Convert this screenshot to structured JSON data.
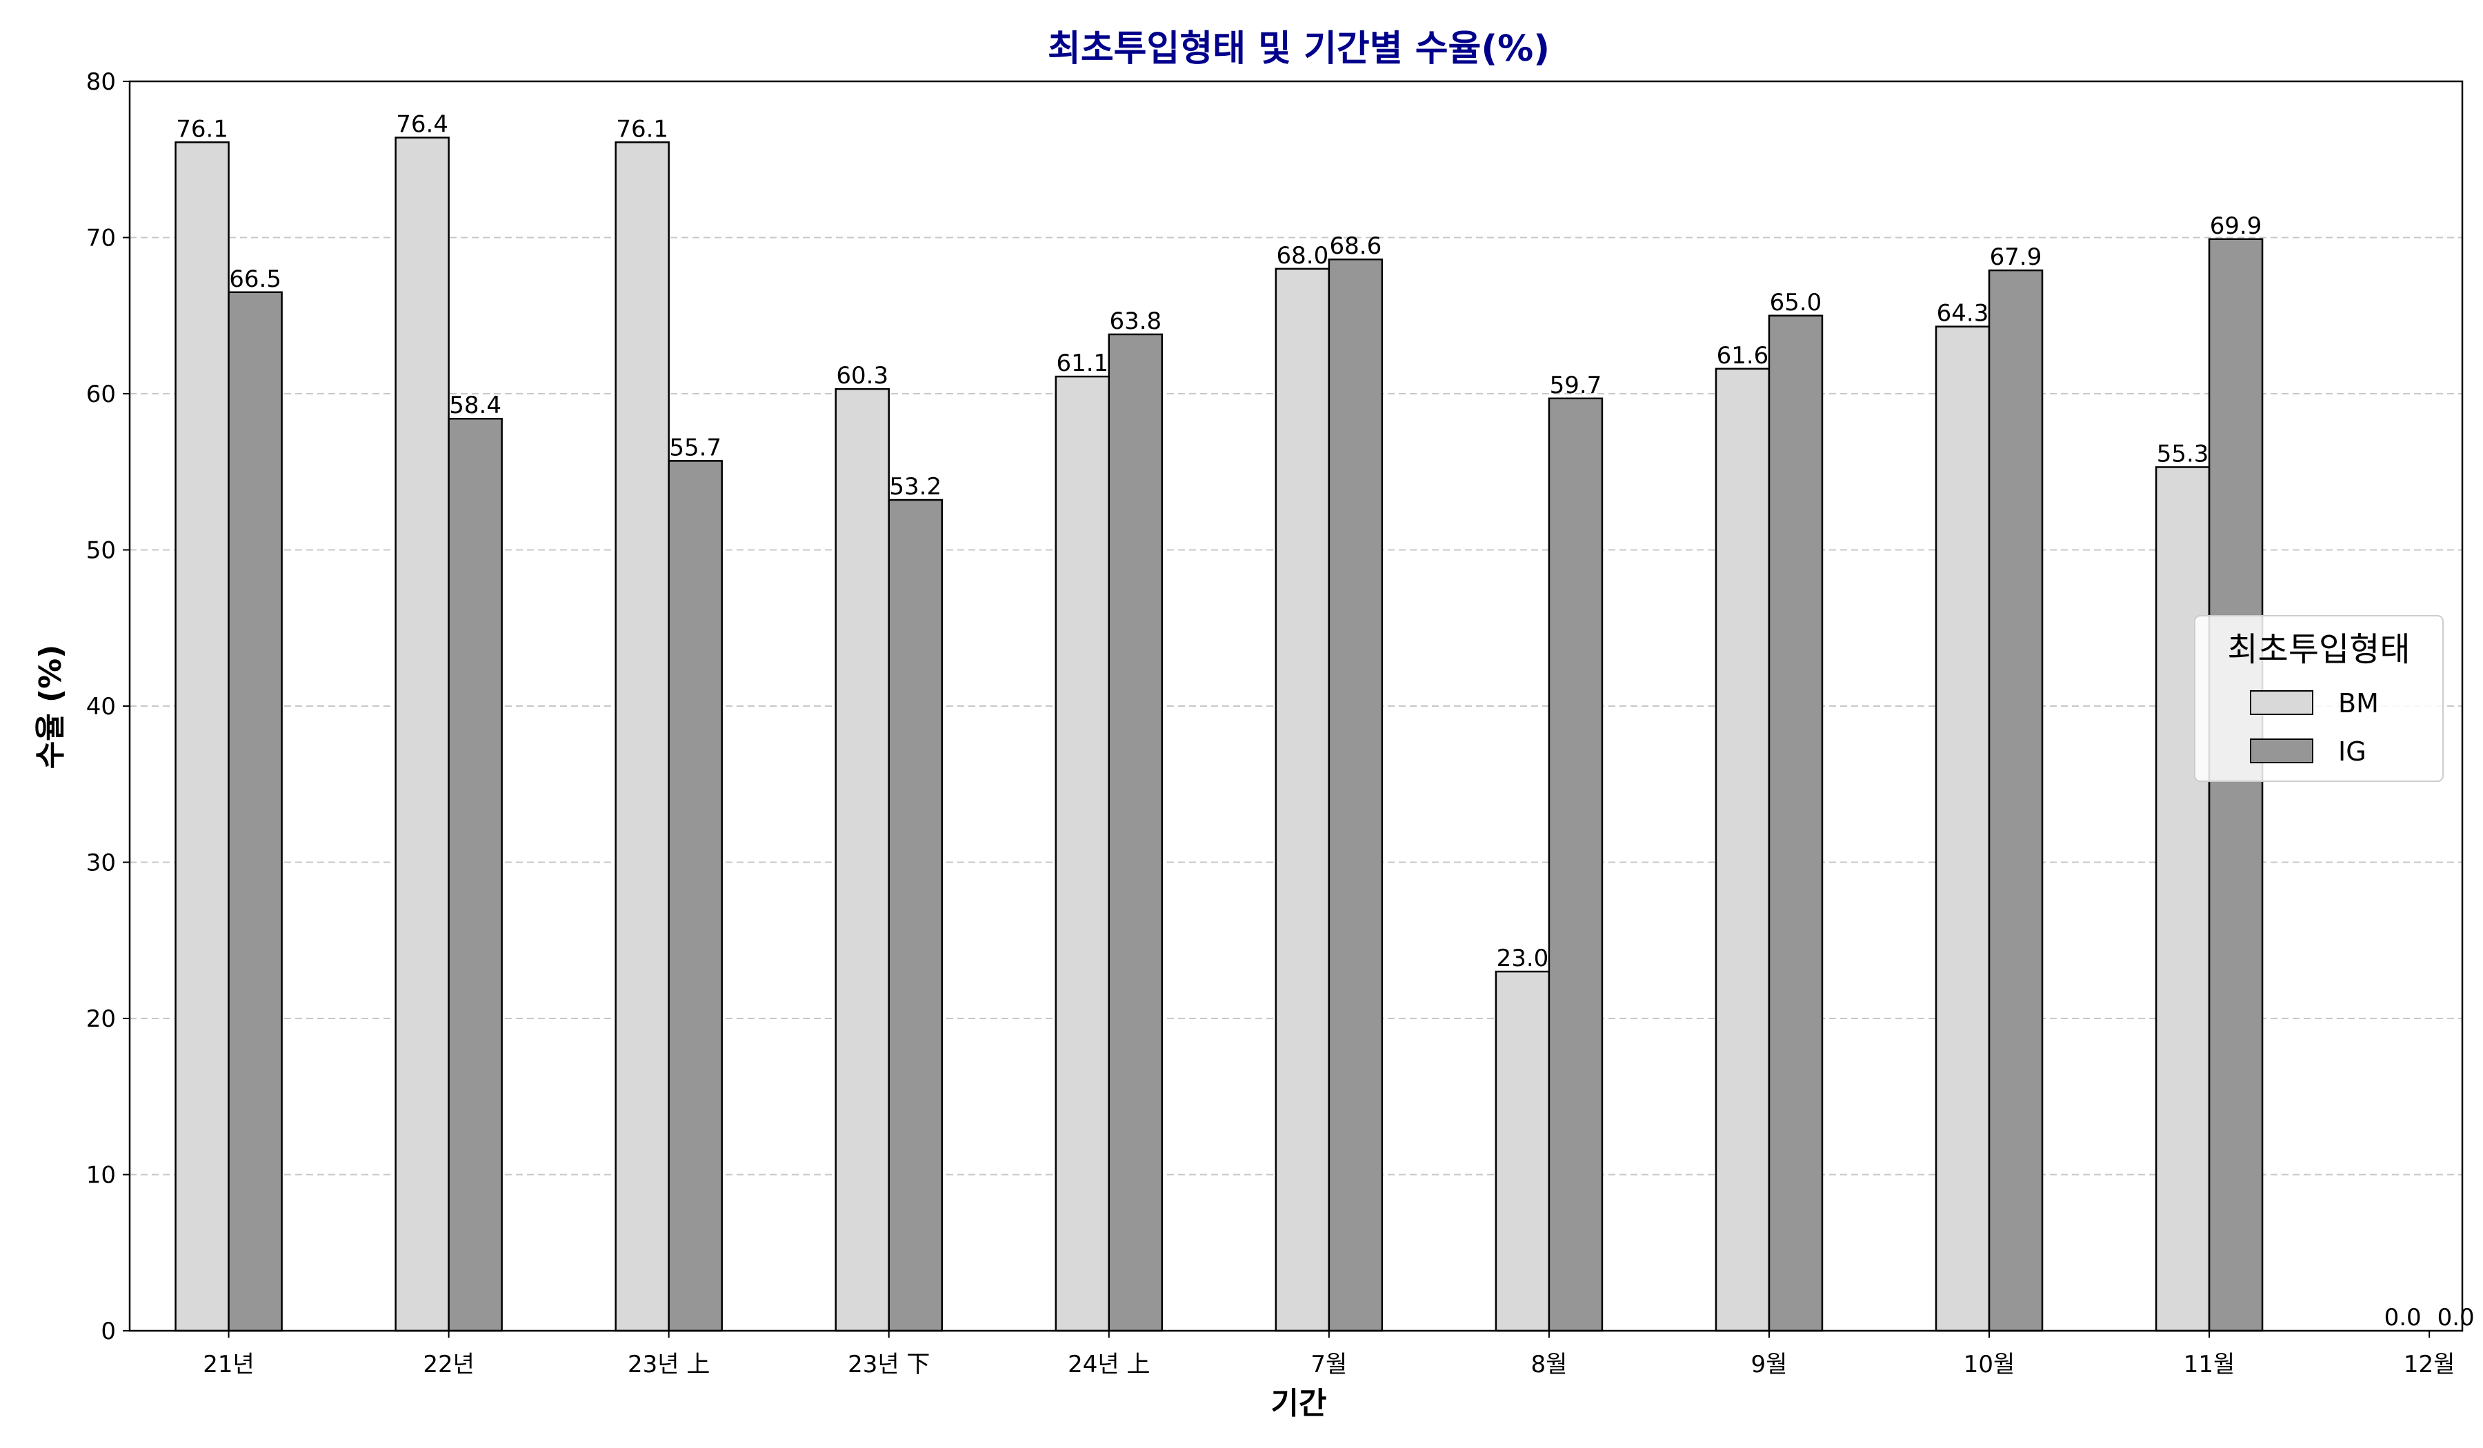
{
  "chart_data": {
    "type": "bar",
    "title": "최초투입형태 및 기간별 수율(%)",
    "xlabel": "기간",
    "ylabel": "수율 (%)",
    "categories": [
      "21년",
      "22년",
      "23년 上",
      "23년 下",
      "24년 上",
      "7월",
      "8월",
      "9월",
      "10월",
      "11월",
      "12월"
    ],
    "series": [
      {
        "name": "BM",
        "values": [
          76.1,
          76.4,
          76.1,
          60.3,
          61.1,
          68.0,
          23.0,
          61.6,
          64.3,
          55.3,
          0.0
        ],
        "color": "#d9d9d9"
      },
      {
        "name": "IG",
        "values": [
          66.5,
          58.4,
          55.7,
          53.2,
          63.8,
          68.6,
          59.7,
          65.0,
          67.9,
          69.9,
          0.0
        ],
        "color": "#969696"
      }
    ],
    "ylim": [
      0,
      80
    ],
    "yticks": [
      0,
      10,
      20,
      30,
      40,
      50,
      60,
      70,
      80
    ],
    "grid": "y-dashed",
    "legend_title": "최초투입형태",
    "legend_position": "center-right",
    "title_color": "#00008b",
    "bar_edge_color": "#000000",
    "grid_color": "#c8c8c8"
  }
}
